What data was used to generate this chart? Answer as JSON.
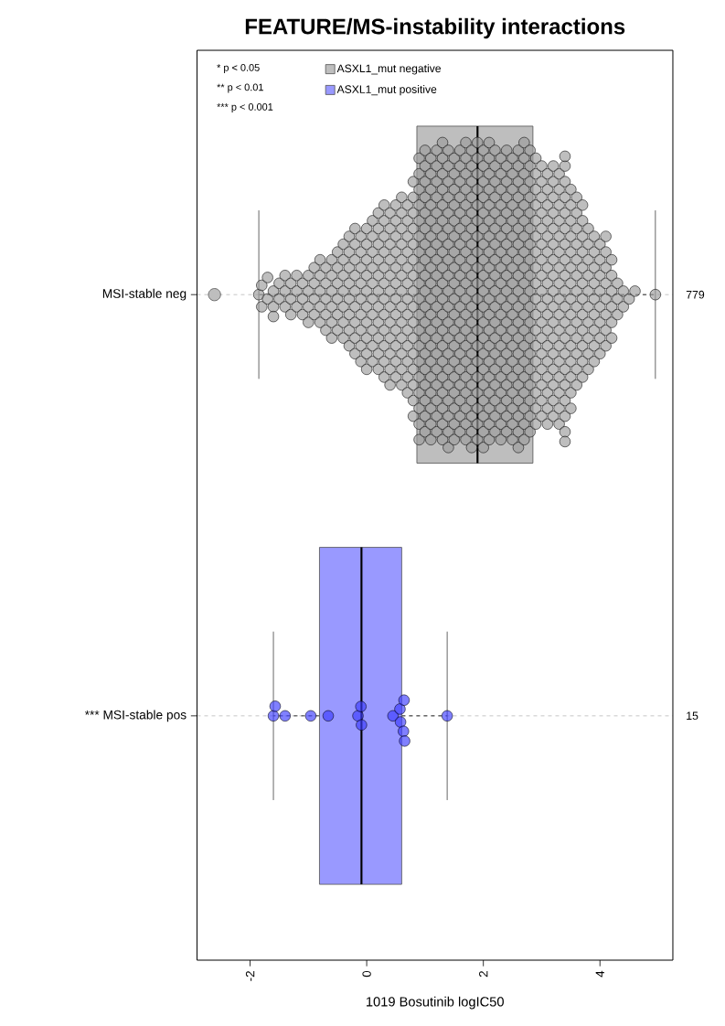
{
  "chart_data": {
    "type": "box",
    "orientation": "horizontal",
    "title": "FEATURE/MS-instability interactions",
    "xlabel": "1019 Bosutinib logIC50",
    "categories": [
      "MSI-stable neg",
      "*** MSI-stable pos"
    ],
    "y2_categories": [
      "779",
      "15"
    ],
    "xlim": [
      -2.91,
      5.25
    ],
    "xticks": [
      -2,
      0,
      2,
      4
    ],
    "grid": "y",
    "legend": "top left",
    "marker": "circle",
    "series": [
      {
        "name": "ASXL1_mut negative",
        "color": "#bebebe",
        "boxes": [
          {
            "low": -1.85,
            "q1": 0.86,
            "median": 1.9,
            "q3": 2.85,
            "high": 4.95,
            "outliers": [
              -2.61
            ]
          },
          null
        ]
      },
      {
        "name": "ASXL1_mut positive",
        "color": "#9999ff",
        "boxes": [
          null,
          {
            "low": -1.6,
            "q1": -0.81,
            "median": -0.09,
            "q3": 0.6,
            "high": 1.38
          }
        ]
      },
      {
        "type": "scatter",
        "color": "#bebebe",
        "x": [
          "MSI-stable neg",
          "MSI-stable neg",
          "MSI-stable neg",
          "MSI-stable neg",
          "MSI-stable neg",
          "MSI-stable neg",
          "MSI-stable neg",
          "MSI-stable neg",
          "MSI-stable neg",
          "MSI-stable neg",
          "MSI-stable neg",
          "MSI-stable neg",
          "MSI-stable neg",
          "MSI-stable neg",
          "MSI-stable neg",
          "MSI-stable neg",
          "MSI-stable neg",
          "MSI-stable neg",
          "MSI-stable neg",
          "MSI-stable neg",
          "MSI-stable neg",
          "MSI-stable neg",
          "MSI-stable neg",
          "MSI-stable neg",
          "MSI-stable neg",
          "MSI-stable neg",
          "MSI-stable neg",
          "MSI-stable neg",
          "MSI-stable neg",
          "MSI-stable neg",
          "MSI-stable neg",
          "MSI-stable neg",
          "MSI-stable neg",
          "MSI-stable neg",
          "MSI-stable neg",
          "MSI-stable neg",
          "MSI-stable neg",
          "MSI-stable neg",
          "MSI-stable neg",
          "MSI-stable neg",
          "MSI-stable neg",
          "MSI-stable neg",
          "MSI-stable neg",
          "MSI-stable neg",
          "MSI-stable neg",
          "MSI-stable neg",
          "MSI-stable neg",
          "MSI-stable neg",
          "MSI-stable neg",
          "MSI-stable neg",
          "MSI-stable neg",
          "MSI-stable neg",
          "MSI-stable neg",
          "MSI-stable neg",
          "MSI-stable neg",
          "MSI-stable neg",
          "MSI-stable neg",
          "MSI-stable neg",
          "MSI-stable neg",
          "MSI-stable neg",
          "MSI-stable neg",
          "MSI-stable neg",
          "MSI-stable neg",
          "MSI-stable neg",
          "MSI-stable neg",
          "MSI-stable neg",
          "MSI-stable neg",
          "MSI-stable neg",
          "MSI-stable neg",
          "MSI-stable neg",
          "MSI-stable neg",
          "MSI-stable neg",
          "MSI-stable neg",
          "MSI-stable neg",
          "MSI-stable neg",
          "MSI-stable neg",
          "MSI-stable neg",
          "MSI-stable neg",
          "MSI-stable neg",
          "MSI-stable neg",
          "MSI-stable neg",
          "MSI-stable neg",
          "MSI-stable neg",
          "MSI-stable neg",
          "MSI-stable neg",
          "MSI-stable neg",
          "MSI-stable neg",
          "MSI-stable neg",
          "MSI-stable neg",
          "MSI-stable neg",
          "MSI-stable neg",
          "MSI-stable neg",
          "MSI-stable neg",
          "MSI-stable neg",
          "MSI-stable neg",
          "MSI-stable neg",
          "MSI-stable neg",
          "MSI-stable neg",
          "MSI-stable neg",
          "MSI-stable neg",
          "MSI-stable neg",
          "MSI-stable neg",
          "MSI-stable neg",
          "MSI-stable neg",
          "MSI-stable neg",
          "MSI-stable neg",
          "MSI-stable neg",
          "MSI-stable neg",
          "MSI-stable neg",
          "MSI-stable neg",
          "MSI-stable neg",
          "MSI-stable neg",
          "MSI-stable neg",
          "MSI-stable neg",
          "MSI-stable neg",
          "MSI-stable neg",
          "MSI-stable neg",
          "MSI-stable neg",
          "MSI-stable neg",
          "MSI-stable neg",
          "MSI-stable neg",
          "MSI-stable neg",
          "MSI-stable neg",
          "MSI-stable neg",
          "MSI-stable neg",
          "MSI-stable neg",
          "MSI-stable neg",
          "MSI-stable neg",
          "MSI-stable neg",
          "MSI-stable neg",
          "MSI-stable neg",
          "MSI-stable neg",
          "MSI-stable neg",
          "MSI-stable neg",
          "MSI-stable neg",
          "MSI-stable neg",
          "MSI-stable neg",
          "MSI-stable neg",
          "MSI-stable neg",
          "MSI-stable neg",
          "MSI-stable neg",
          "MSI-stable neg",
          "MSI-stable neg",
          "MSI-stable neg",
          "MSI-stable neg",
          "MSI-stable neg",
          "MSI-stable neg",
          "MSI-stable neg",
          "MSI-stable neg",
          "MSI-stable neg",
          "MSI-stable neg",
          "MSI-stable neg",
          "MSI-stable neg",
          "MSI-stable neg",
          "MSI-stable neg",
          "MSI-stable neg",
          "MSI-stable neg",
          "MSI-stable neg",
          "MSI-stable neg",
          "MSI-stable neg",
          "MSI-stable neg",
          "MSI-stable neg",
          "MSI-stable neg",
          "MSI-stable neg",
          "MSI-stable neg",
          "MSI-stable neg",
          "MSI-stable neg",
          "MSI-stable neg",
          "MSI-stable neg",
          "MSI-stable neg",
          "MSI-stable neg",
          "MSI-stable neg",
          "MSI-stable neg",
          "MSI-stable neg",
          "MSI-stable neg",
          "MSI-stable neg",
          "MSI-stable neg",
          "MSI-stable neg",
          "MSI-stable neg",
          "MSI-stable neg",
          "MSI-stable neg",
          "MSI-stable neg",
          "MSI-stable neg",
          "MSI-stable neg",
          "MSI-stable neg",
          "MSI-stable neg",
          "MSI-stable neg",
          "MSI-stable neg",
          "MSI-stable neg",
          "MSI-stable neg",
          "MSI-stable neg",
          "MSI-stable neg",
          "MSI-stable neg",
          "MSI-stable neg",
          "MSI-stable neg",
          "MSI-stable neg",
          "MSI-stable neg",
          "MSI-stable neg",
          "MSI-stable neg",
          "MSI-stable neg",
          "MSI-stable neg",
          "MSI-stable neg",
          "MSI-stable neg",
          "MSI-stable neg",
          "MSI-stable neg",
          "MSI-stable neg",
          "MSI-stable neg",
          "MSI-stable neg",
          "MSI-stable neg",
          "MSI-stable neg",
          "MSI-stable neg",
          "MSI-stable neg",
          "MSI-stable neg",
          "MSI-stable neg",
          "MSI-stable neg",
          "MSI-stable neg",
          "MSI-stable neg",
          "MSI-stable neg",
          "MSI-stable neg",
          "MSI-stable neg",
          "MSI-stable neg",
          "MSI-stable neg",
          "MSI-stable neg",
          "MSI-stable neg",
          "MSI-stable neg",
          "MSI-stable neg",
          "MSI-stable neg",
          "MSI-stable neg",
          "MSI-stable neg",
          "MSI-stable neg",
          "MSI-stable neg",
          "MSI-stable neg",
          "MSI-stable neg",
          "MSI-stable neg",
          "MSI-stable neg",
          "MSI-stable neg",
          "MSI-stable neg",
          "MSI-stable neg",
          "MSI-stable neg",
          "MSI-stable neg",
          "MSI-stable neg",
          "MSI-stable neg",
          "MSI-stable neg",
          "MSI-stable neg",
          "MSI-stable neg",
          "MSI-stable neg",
          "MSI-stable neg",
          "MSI-stable neg",
          "MSI-stable neg",
          "MSI-stable neg",
          "MSI-stable neg",
          "MSI-stable neg",
          "MSI-stable neg",
          "MSI-stable neg",
          "MSI-stable neg",
          "MSI-stable neg",
          "MSI-stable neg",
          "MSI-stable neg",
          "MSI-stable neg",
          "MSI-stable neg",
          "MSI-stable neg",
          "MSI-stable neg",
          "MSI-stable neg",
          "MSI-stable neg",
          "MSI-stable neg",
          "MSI-stable neg",
          "MSI-stable neg",
          "MSI-stable neg",
          "MSI-stable neg",
          "MSI-stable neg",
          "MSI-stable neg",
          "MSI-stable neg",
          "MSI-stable neg",
          "MSI-stable neg",
          "MSI-stable neg",
          "MSI-stable neg",
          "MSI-stable neg",
          "MSI-stable neg",
          "MSI-stable neg",
          "MSI-stable neg",
          "MSI-stable neg",
          "MSI-stable neg",
          "MSI-stable neg",
          "MSI-stable neg",
          "MSI-stable neg",
          "MSI-stable neg",
          "MSI-stable neg",
          "MSI-stable neg",
          "MSI-stable neg",
          "MSI-stable neg",
          "MSI-stable neg",
          "MSI-stable neg",
          "MSI-stable neg",
          "MSI-stable neg",
          "MSI-stable neg",
          "MSI-stable neg",
          "MSI-stable neg",
          "MSI-stable neg",
          "MSI-stable neg",
          "MSI-stable neg",
          "MSI-stable neg",
          "MSI-stable neg",
          "MSI-stable neg",
          "MSI-stable neg",
          "MSI-stable neg",
          "MSI-stable neg",
          "MSI-stable neg",
          "MSI-stable neg",
          "MSI-stable neg",
          "MSI-stable neg",
          "MSI-stable neg",
          "MSI-stable neg",
          "MSI-stable neg",
          "MSI-stable neg",
          "MSI-stable neg",
          "MSI-stable neg",
          "MSI-stable neg",
          "MSI-stable neg",
          "MSI-stable neg",
          "MSI-stable neg",
          "MSI-stable neg",
          "MSI-stable neg",
          "MSI-stable neg",
          "MSI-stable neg",
          "MSI-stable neg",
          "MSI-stable neg",
          "MSI-stable neg",
          "MSI-stable neg",
          "MSI-stable neg",
          "MSI-stable neg",
          "MSI-stable neg",
          "MSI-stable neg",
          "MSI-stable neg",
          "MSI-stable neg",
          "MSI-stable neg",
          "MSI-stable neg",
          "MSI-stable neg",
          "MSI-stable neg",
          "MSI-stable neg",
          "MSI-stable neg",
          "MSI-stable neg",
          "MSI-stable neg",
          "MSI-stable neg",
          "MSI-stable neg",
          "MSI-stable neg",
          "MSI-stable neg",
          "MSI-stable neg",
          "MSI-stable neg",
          "MSI-stable neg",
          "MSI-stable neg",
          "MSI-stable neg",
          "MSI-stable neg",
          "MSI-stable neg",
          "MSI-stable neg",
          "MSI-stable neg",
          "MSI-stable neg",
          "MSI-stable neg",
          "MSI-stable neg",
          "MSI-stable neg",
          "MSI-stable neg",
          "MSI-stable neg",
          "MSI-stable neg",
          "MSI-stable neg",
          "MSI-stable neg",
          "MSI-stable neg",
          "MSI-stable neg",
          "MSI-stable neg",
          "MSI-stable neg",
          "MSI-stable neg",
          "MSI-stable neg",
          "MSI-stable neg",
          "MSI-stable neg",
          "MSI-stable neg",
          "MSI-stable neg",
          "MSI-stable neg",
          "MSI-stable neg",
          "MSI-stable neg",
          "MSI-stable neg",
          "MSI-stable neg",
          "MSI-stable neg",
          "MSI-stable neg",
          "MSI-stable neg",
          "MSI-stable neg",
          "MSI-stable neg",
          "MSI-stable neg",
          "MSI-stable neg",
          "MSI-stable neg",
          "MSI-stable neg",
          "MSI-stable neg",
          "MSI-stable neg",
          "MSI-stable neg",
          "MSI-stable neg",
          "MSI-stable neg",
          "MSI-stable neg",
          "MSI-stable neg",
          "MSI-stable neg",
          "MSI-stable neg",
          "MSI-stable neg",
          "MSI-stable neg",
          "MSI-stable neg",
          "MSI-stable neg",
          "MSI-stable neg",
          "MSI-stable neg",
          "MSI-stable neg",
          "MSI-stable neg",
          "MSI-stable neg",
          "MSI-stable neg",
          "MSI-stable neg",
          "MSI-stable neg",
          "MSI-stable neg",
          "MSI-stable neg",
          "MSI-stable neg",
          "MSI-stable neg",
          "MSI-stable neg",
          "MSI-stable neg",
          "MSI-stable neg",
          "MSI-stable neg",
          "MSI-stable neg",
          "MSI-stable neg",
          "MSI-stable neg",
          "MSI-stable neg",
          "MSI-stable neg",
          "MSI-stable neg",
          "MSI-stable neg",
          "MSI-stable neg",
          "MSI-stable neg",
          "MSI-stable neg",
          "MSI-stable neg",
          "MSI-stable neg",
          "MSI-stable neg",
          "MSI-stable neg",
          "MSI-stable neg",
          "MSI-stable neg",
          "MSI-stable neg",
          "MSI-stable neg",
          "MSI-stable neg",
          "MSI-stable neg",
          "MSI-stable neg",
          "MSI-stable neg",
          "MSI-stable neg",
          "MSI-stable neg",
          "MSI-stable neg",
          "MSI-stable neg",
          "MSI-stable neg",
          "MSI-stable neg",
          "MSI-stable neg",
          "MSI-stable neg",
          "MSI-stable neg",
          "MSI-stable neg",
          "MSI-stable neg",
          "MSI-stable neg",
          "MSI-stable neg",
          "MSI-stable neg",
          "MSI-stable neg",
          "MSI-stable neg",
          "MSI-stable neg",
          "MSI-stable neg",
          "MSI-stable neg",
          "MSI-stable neg",
          "MSI-stable neg",
          "MSI-stable neg",
          "MSI-stable neg",
          "MSI-stable neg",
          "MSI-stable neg",
          "MSI-stable neg",
          "MSI-stable neg",
          "MSI-stable neg",
          "MSI-stable neg",
          "MSI-stable neg",
          "MSI-stable neg",
          "MSI-stable neg",
          "MSI-stable neg",
          "MSI-stable neg",
          "MSI-stable neg",
          "MSI-stable neg",
          "MSI-stable neg",
          "MSI-stable neg",
          "MSI-stable neg",
          "MSI-stable neg",
          "MSI-stable neg",
          "MSI-stable neg",
          "MSI-stable neg",
          "MSI-stable neg",
          "MSI-stable neg",
          "MSI-stable neg",
          "MSI-stable neg",
          "MSI-stable neg",
          "MSI-stable neg",
          "MSI-stable neg",
          "MSI-stable neg",
          "MSI-stable neg",
          "MSI-stable neg",
          "MSI-stable neg",
          "MSI-stable neg",
          "MSI-stable neg",
          "MSI-stable neg",
          "MSI-stable neg",
          "MSI-stable neg",
          "MSI-stable neg",
          "MSI-stable neg",
          "MSI-stable neg",
          "MSI-stable neg",
          "MSI-stable neg",
          "MSI-stable neg",
          "MSI-stable neg",
          "MSI-stable neg",
          "MSI-stable neg",
          "MSI-stable neg",
          "MSI-stable neg",
          "MSI-stable neg",
          "MSI-stable neg",
          "MSI-stable neg",
          "MSI-stable neg",
          "MSI-stable neg",
          "MSI-stable neg",
          "MSI-stable neg",
          "MSI-stable neg",
          "MSI-stable neg",
          "MSI-stable neg",
          "MSI-stable neg",
          "MSI-stable neg",
          "MSI-stable neg",
          "MSI-stable neg",
          "MSI-stable neg",
          "MSI-stable neg",
          "MSI-stable neg",
          "MSI-stable neg",
          "MSI-stable neg",
          "MSI-stable neg",
          "MSI-stable neg",
          "MSI-stable neg",
          "MSI-stable neg",
          "MSI-stable neg",
          "MSI-stable neg",
          "MSI-stable neg",
          "MSI-stable neg",
          "MSI-stable neg",
          "MSI-stable neg",
          "MSI-stable neg",
          "MSI-stable neg",
          "MSI-stable neg",
          "MSI-stable neg",
          "MSI-stable neg",
          "MSI-stable neg",
          "MSI-stable neg",
          "MSI-stable neg",
          "MSI-stable neg",
          "MSI-stable neg",
          "MSI-stable neg",
          "MSI-stable neg",
          "MSI-stable neg",
          "MSI-stable neg",
          "MSI-stable neg",
          "MSI-stable neg",
          "MSI-stable neg",
          "MSI-stable neg",
          "MSI-stable neg",
          "MSI-stable neg",
          "MSI-stable neg",
          "MSI-stable neg",
          "MSI-stable neg",
          "MSI-stable neg",
          "MSI-stable neg",
          "MSI-stable neg",
          "MSI-stable neg",
          "MSI-stable neg",
          "MSI-stable neg",
          "MSI-stable neg",
          "MSI-stable neg",
          "MSI-stable neg",
          "MSI-stable neg",
          "MSI-stable neg",
          "MSI-stable neg",
          "MSI-stable neg",
          "MSI-stable neg",
          "MSI-stable neg",
          "MSI-stable neg",
          "MSI-stable neg",
          "MSI-stable neg",
          "MSI-stable neg",
          "MSI-stable neg",
          "MSI-stable neg",
          "MSI-stable neg",
          "MSI-stable neg",
          "MSI-stable neg",
          "MSI-stable neg",
          "MSI-stable neg",
          "MSI-stable neg",
          "MSI-stable neg",
          "MSI-stable neg",
          "MSI-stable neg",
          "MSI-stable neg",
          "MSI-stable neg",
          "MSI-stable neg",
          "MSI-stable neg",
          "MSI-stable neg",
          "MSI-stable neg",
          "MSI-stable neg",
          "MSI-stable neg",
          "MSI-stable neg",
          "MSI-stable neg",
          "MSI-stable neg",
          "MSI-stable neg",
          "MSI-stable neg",
          "MSI-stable neg",
          "MSI-stable neg",
          "MSI-stable neg",
          "MSI-stable neg",
          "MSI-stable neg",
          "MSI-stable neg",
          "MSI-stable neg",
          "MSI-stable neg",
          "MSI-stable neg",
          "MSI-stable neg",
          "MSI-stable neg",
          "MSI-stable neg",
          "MSI-stable neg",
          "MSI-stable neg",
          "MSI-stable neg",
          "MSI-stable neg",
          "MSI-stable neg",
          "MSI-stable neg",
          "MSI-stable neg",
          "MSI-stable neg",
          "MSI-stable neg",
          "MSI-stable neg",
          "MSI-stable neg",
          "MSI-stable neg",
          "MSI-stable neg",
          "MSI-stable neg",
          "MSI-stable neg",
          "MSI-stable neg",
          "MSI-stable neg",
          "MSI-stable neg",
          "MSI-stable neg",
          "MSI-stable neg",
          "MSI-stable neg",
          "MSI-stable neg",
          "MSI-stable neg",
          "MSI-stable neg",
          "MSI-stable neg",
          "MSI-stable neg",
          "MSI-stable neg",
          "MSI-stable neg",
          "MSI-stable neg",
          "MSI-stable neg",
          "MSI-stable neg",
          "MSI-stable neg",
          "MSI-stable neg",
          "MSI-stable neg",
          "MSI-stable neg",
          "MSI-stable neg",
          "MSI-stable neg",
          "MSI-stable neg",
          "MSI-stable neg",
          "MSI-stable neg",
          "MSI-stable neg",
          "MSI-stable neg",
          "MSI-stable neg",
          "MSI-stable neg",
          "MSI-stable neg",
          "MSI-stable neg",
          "MSI-stable neg",
          "MSI-stable neg",
          "MSI-stable neg",
          "MSI-stable neg",
          "MSI-stable neg",
          "MSI-stable neg",
          "MSI-stable neg",
          "MSI-stable neg",
          "MSI-stable neg",
          "MSI-stable neg",
          "MSI-stable neg",
          "MSI-stable neg",
          "MSI-stable neg",
          "MSI-stable neg",
          "MSI-stable neg",
          "MSI-stable neg",
          "MSI-stable neg",
          "MSI-stable neg",
          "MSI-stable neg",
          "MSI-stable neg",
          "MSI-stable neg",
          "MSI-stable neg",
          "MSI-stable neg",
          "MSI-stable neg",
          "MSI-stable neg",
          "MSI-stable neg",
          "MSI-stable neg",
          "MSI-stable neg",
          "MSI-stable neg",
          "MSI-stable neg",
          "MSI-stable neg",
          "MSI-stable neg",
          "MSI-stable neg",
          "MSI-stable neg",
          "MSI-stable neg",
          "MSI-stable neg",
          "MSI-stable neg",
          "MSI-stable neg",
          "MSI-stable neg",
          "MSI-stable neg",
          "MSI-stable neg",
          "MSI-stable neg",
          "MSI-stable neg",
          "MSI-stable neg",
          "MSI-stable neg",
          "MSI-stable neg",
          "MSI-stable neg",
          "MSI-stable neg",
          "MSI-stable neg",
          "MSI-stable neg",
          "MSI-stable neg",
          "MSI-stable neg",
          "MSI-stable neg",
          "MSI-stable neg",
          "MSI-stable neg",
          "MSI-stable neg",
          "MSI-stable neg",
          "MSI-stable neg",
          "MSI-stable neg",
          "MSI-stable neg",
          "MSI-stable neg",
          "MSI-stable neg",
          "MSI-stable neg",
          "MSI-stable neg",
          "MSI-stable neg",
          "MSI-stable neg",
          "MSI-stable neg",
          "MSI-stable neg",
          "MSI-stable neg",
          "MSI-stable neg",
          "MSI-stable neg",
          "MSI-stable neg",
          "MSI-stable neg",
          "MSI-stable neg",
          "MSI-stable neg",
          "MSI-stable neg",
          "MSI-stable neg",
          "MSI-stable neg",
          "MSI-stable neg",
          "MSI-stable neg",
          "MSI-stable neg",
          "MSI-stable neg",
          "MSI-stable neg",
          "MSI-stable neg",
          "MSI-stable neg",
          "MSI-stable neg",
          "MSI-stable neg",
          "MSI-stable neg",
          "MSI-stable neg",
          "MSI-stable neg",
          "MSI-stable neg",
          "MSI-stable neg",
          "MSI-stable neg",
          "MSI-stable neg",
          "MSI-stable neg",
          "MSI-stable neg",
          "MSI-stable neg",
          "MSI-stable neg",
          "MSI-stable neg",
          "MSI-stable neg",
          "MSI-stable neg",
          "MSI-stable neg",
          "MSI-stable neg",
          "MSI-stable neg",
          "MSI-stable neg",
          "MSI-stable neg",
          "MSI-stable neg",
          "MSI-stable neg",
          "MSI-stable neg",
          "MSI-stable neg",
          "MSI-stable neg",
          "MSI-stable neg",
          "MSI-stable neg",
          "MSI-stable neg",
          "MSI-stable neg",
          "MSI-stable neg"
        ],
        "values": [
          -1.85,
          -1.8,
          -1.8,
          -1.7,
          -1.7,
          -1.6,
          -1.6,
          -1.6,
          -1.5,
          -1.5,
          -1.4,
          -1.4,
          -1.4,
          -1.3,
          -1.3,
          -1.3,
          -1.2,
          -1.2,
          -1.2,
          -1.1,
          -1.1,
          -1.1,
          -1,
          -1,
          -1,
          -1,
          -0.9,
          -0.9,
          -0.9,
          -0.9,
          -0.8,
          -0.8,
          -0.8,
          -0.8,
          -0.8,
          -0.7,
          -0.7,
          -0.7,
          -0.7,
          -0.7,
          -0.6,
          -0.6,
          -0.6,
          -0.6,
          -0.6,
          -0.6,
          -0.5,
          -0.5,
          -0.5,
          -0.5,
          -0.5,
          -0.5,
          -0.4,
          -0.4,
          -0.4,
          -0.4,
          -0.4,
          -0.4,
          -0.4,
          -0.3,
          -0.3,
          -0.3,
          -0.3,
          -0.3,
          -0.3,
          -0.3,
          -0.3,
          -0.2,
          -0.2,
          -0.2,
          -0.2,
          -0.2,
          -0.2,
          -0.2,
          -0.2,
          -0.2,
          -0.1,
          -0.1,
          -0.1,
          -0.1,
          -0.1,
          -0.1,
          -0.1,
          -0.1,
          -0.1,
          0,
          0,
          0,
          0,
          0,
          0,
          0,
          0,
          0,
          0,
          0.1,
          0.1,
          0.1,
          0.1,
          0.1,
          0.1,
          0.1,
          0.1,
          0.1,
          0.1,
          0.2,
          0.2,
          0.2,
          0.2,
          0.2,
          0.2,
          0.2,
          0.2,
          0.2,
          0.2,
          0.2,
          0.3,
          0.3,
          0.3,
          0.3,
          0.3,
          0.3,
          0.3,
          0.3,
          0.3,
          0.3,
          0.3,
          0.3,
          0.4,
          0.4,
          0.4,
          0.4,
          0.4,
          0.4,
          0.4,
          0.4,
          0.4,
          0.4,
          0.4,
          0.4,
          0.5,
          0.5,
          0.5,
          0.5,
          0.5,
          0.5,
          0.5,
          0.5,
          0.5,
          0.5,
          0.5,
          0.5,
          0.6,
          0.6,
          0.6,
          0.6,
          0.6,
          0.6,
          0.6,
          0.6,
          0.6,
          0.6,
          0.6,
          0.6,
          0.6,
          0.7,
          0.7,
          0.7,
          0.7,
          0.7,
          0.7,
          0.7,
          0.7,
          0.7,
          0.7,
          0.7,
          0.7,
          0.7,
          0.8,
          0.8,
          0.8,
          0.8,
          0.8,
          0.8,
          0.8,
          0.8,
          0.8,
          0.8,
          0.8,
          0.8,
          0.8,
          0.8,
          0.8,
          0.8,
          0.9,
          0.9,
          0.9,
          0.9,
          0.9,
          0.9,
          0.9,
          0.9,
          0.9,
          0.9,
          0.9,
          0.9,
          0.9,
          0.9,
          0.9,
          0.9,
          0.9,
          0.9,
          0.9,
          1,
          1,
          1,
          1,
          1,
          1,
          1,
          1,
          1,
          1,
          1,
          1,
          1,
          1,
          1,
          1,
          1,
          1,
          1,
          1.1,
          1.1,
          1.1,
          1.1,
          1.1,
          1.1,
          1.1,
          1.1,
          1.1,
          1.1,
          1.1,
          1.1,
          1.1,
          1.1,
          1.1,
          1.1,
          1.1,
          1.1,
          1.1,
          1.2,
          1.2,
          1.2,
          1.2,
          1.2,
          1.2,
          1.2,
          1.2,
          1.2,
          1.2,
          1.2,
          1.2,
          1.2,
          1.2,
          1.2,
          1.2,
          1.2,
          1.2,
          1.2,
          1.3,
          1.3,
          1.3,
          1.3,
          1.3,
          1.3,
          1.3,
          1.3,
          1.3,
          1.3,
          1.3,
          1.3,
          1.3,
          1.3,
          1.3,
          1.3,
          1.3,
          1.3,
          1.3,
          1.3,
          1.4,
          1.4,
          1.4,
          1.4,
          1.4,
          1.4,
          1.4,
          1.4,
          1.4,
          1.4,
          1.4,
          1.4,
          1.4,
          1.4,
          1.4,
          1.4,
          1.4,
          1.4,
          1.4,
          1.4,
          1.5,
          1.5,
          1.5,
          1.5,
          1.5,
          1.5,
          1.5,
          1.5,
          1.5,
          1.5,
          1.5,
          1.5,
          1.5,
          1.5,
          1.5,
          1.5,
          1.5,
          1.5,
          1.5,
          1.6,
          1.6,
          1.6,
          1.6,
          1.6,
          1.6,
          1.6,
          1.6,
          1.6,
          1.6,
          1.6,
          1.6,
          1.6,
          1.6,
          1.6,
          1.6,
          1.6,
          1.6,
          1.6,
          1.7,
          1.7,
          1.7,
          1.7,
          1.7,
          1.7,
          1.7,
          1.7,
          1.7,
          1.7,
          1.7,
          1.7,
          1.7,
          1.7,
          1.7,
          1.7,
          1.7,
          1.7,
          1.7,
          1.7,
          1.8,
          1.8,
          1.8,
          1.8,
          1.8,
          1.8,
          1.8,
          1.8,
          1.8,
          1.8,
          1.8,
          1.8,
          1.8,
          1.8,
          1.8,
          1.8,
          1.8,
          1.8,
          1.8,
          1.8,
          1.9,
          1.9,
          1.9,
          1.9,
          1.9,
          1.9,
          1.9,
          1.9,
          1.9,
          1.9,
          1.9,
          1.9,
          1.9,
          1.9,
          1.9,
          1.9,
          1.9,
          1.9,
          1.9,
          1.9,
          2,
          2,
          2,
          2,
          2,
          2,
          2,
          2,
          2,
          2,
          2,
          2,
          2,
          2,
          2,
          2,
          2,
          2,
          2,
          2,
          2.1,
          2.1,
          2.1,
          2.1,
          2.1,
          2.1,
          2.1,
          2.1,
          2.1,
          2.1,
          2.1,
          2.1,
          2.1,
          2.1,
          2.1,
          2.1,
          2.1,
          2.1,
          2.1,
          2.1,
          2.2,
          2.2,
          2.2,
          2.2,
          2.2,
          2.2,
          2.2,
          2.2,
          2.2,
          2.2,
          2.2,
          2.2,
          2.2,
          2.2,
          2.2,
          2.2,
          2.2,
          2.2,
          2.2,
          2.3,
          2.3,
          2.3,
          2.3,
          2.3,
          2.3,
          2.3,
          2.3,
          2.3,
          2.3,
          2.3,
          2.3,
          2.3,
          2.3,
          2.3,
          2.3,
          2.3,
          2.3,
          2.3,
          2.4,
          2.4,
          2.4,
          2.4,
          2.4,
          2.4,
          2.4,
          2.4,
          2.4,
          2.4,
          2.4,
          2.4,
          2.4,
          2.4,
          2.4,
          2.4,
          2.4,
          2.4,
          2.4,
          2.5,
          2.5,
          2.5,
          2.5,
          2.5,
          2.5,
          2.5,
          2.5,
          2.5,
          2.5,
          2.5,
          2.5,
          2.5,
          2.5,
          2.5,
          2.5,
          2.5,
          2.5,
          2.5,
          2.6,
          2.6,
          2.6,
          2.6,
          2.6,
          2.6,
          2.6,
          2.6,
          2.6,
          2.6,
          2.6,
          2.6,
          2.6,
          2.6,
          2.6,
          2.6,
          2.6,
          2.6,
          2.6,
          2.6,
          2.7,
          2.7,
          2.7,
          2.7,
          2.7,
          2.7,
          2.7,
          2.7,
          2.7,
          2.7,
          2.7,
          2.7,
          2.7,
          2.7,
          2.7,
          2.7,
          2.7,
          2.7,
          2.7,
          2.7,
          2.8,
          2.8,
          2.8,
          2.8,
          2.8,
          2.8,
          2.8,
          2.8,
          2.8,
          2.8,
          2.8,
          2.8,
          2.8,
          2.8,
          2.8,
          2.8,
          2.8,
          2.8,
          2.8,
          2.9,
          2.9,
          2.9,
          2.9,
          2.9,
          2.9,
          2.9,
          2.9,
          2.9,
          2.9,
          2.9,
          2.9,
          2.9,
          2.9,
          2.9,
          2.9,
          2.9,
          2.9,
          3,
          3,
          3,
          3,
          3,
          3,
          3,
          3,
          3,
          3,
          3,
          3,
          3,
          3,
          3,
          3,
          3,
          3.1,
          3.1,
          3.1,
          3.1,
          3.1,
          3.1,
          3.1,
          3.1,
          3.1,
          3.1,
          3.1,
          3.1,
          3.1,
          3.1,
          3.1,
          3.1,
          3.1,
          3.2,
          3.2,
          3.2,
          3.2,
          3.2,
          3.2,
          3.2,
          3.2,
          3.2,
          3.2,
          3.2,
          3.2,
          3.2,
          3.2,
          3.2,
          3.2,
          3.2,
          3.3,
          3.3,
          3.3,
          3.3,
          3.3,
          3.3,
          3.3,
          3.3,
          3.3,
          3.3,
          3.3,
          3.3,
          3.3,
          3.3,
          3.3,
          3.3,
          3.3,
          3.4,
          3.4,
          3.4,
          3.4,
          3.4,
          3.4,
          3.4,
          3.4,
          3.4,
          3.4,
          3.4,
          3.4,
          3.4,
          3.4,
          3.4,
          3.4,
          3.4,
          3.4,
          3.4,
          3.4,
          3.5,
          3.5,
          3.5,
          3.5,
          3.5,
          3.5,
          3.5,
          3.5,
          3.5,
          3.5,
          3.5,
          3.5,
          3.5,
          3.5,
          3.5,
          3.6,
          3.6,
          3.6,
          3.6,
          3.6,
          3.6,
          3.6,
          3.6,
          3.6,
          3.6,
          3.6,
          3.6,
          3.6,
          3.7,
          3.7,
          3.7,
          3.7,
          3.7,
          3.7,
          3.7,
          3.7,
          3.7,
          3.7,
          3.7,
          3.7,
          3.8,
          3.8,
          3.8,
          3.8,
          3.8,
          3.8,
          3.8,
          3.8,
          3.8,
          3.8,
          3.9,
          3.9,
          3.9,
          3.9,
          3.9,
          3.9,
          3.9,
          3.9,
          3.9,
          4,
          4,
          4,
          4,
          4,
          4,
          4,
          4,
          4.1,
          4.1,
          4.1,
          4.1,
          4.1,
          4.1,
          4.1,
          4.1,
          4.2,
          4.2,
          4.2,
          4.2,
          4.2,
          4.2,
          4.3,
          4.3,
          4.3,
          4.4,
          4.4,
          4.5,
          4.6,
          4.95
        ]
      },
      {
        "type": "scatter",
        "color": "#8080ff",
        "x": [
          "*** MSI-stable pos",
          "*** MSI-stable pos",
          "*** MSI-stable pos",
          "*** MSI-stable pos",
          "*** MSI-stable pos",
          "*** MSI-stable pos",
          "*** MSI-stable pos",
          "*** MSI-stable pos",
          "*** MSI-stable pos",
          "*** MSI-stable pos",
          "*** MSI-stable pos",
          "*** MSI-stable pos",
          "*** MSI-stable pos",
          "*** MSI-stable pos",
          "*** MSI-stable pos"
        ],
        "values": [
          -1.6,
          -1.57,
          -1.4,
          -0.96,
          -0.66,
          -0.15,
          -0.1,
          -0.09,
          0.45,
          0.57,
          0.58,
          0.63,
          0.64,
          0.65,
          1.38
        ]
      }
    ],
    "annotations": [
      "* p < 0.05",
      "** p < 0.01",
      "*** p < 0.001"
    ]
  }
}
